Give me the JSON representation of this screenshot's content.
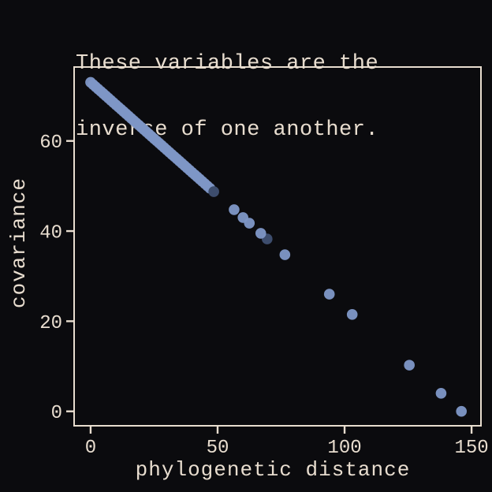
{
  "page": {
    "background_color": "#0b0b0e",
    "text_color": "#e8ddcf"
  },
  "title": {
    "line1": "These variables are the",
    "line2": "inverse of one another."
  },
  "chart_data": {
    "type": "scatter",
    "title": "These variables are the inverse of one another.",
    "xlabel": "phylogenetic distance",
    "ylabel": "covariance",
    "xlim": [
      -6.5,
      153.7
    ],
    "ylim": [
      -3.2,
      76.4
    ],
    "x_ticks": [
      0,
      50,
      100,
      150
    ],
    "y_ticks": [
      0,
      20,
      40,
      60
    ],
    "grid": false,
    "legend": "none",
    "marker_color": "#7e96c6",
    "dark_marker_color": "#3d4d6d",
    "marker_radius_px": 6.8,
    "relationship": "covariance ≈ 73 - 0.5 × phylogenetic distance",
    "points": [
      [
        0,
        73
      ],
      [
        1,
        72.5
      ],
      [
        2,
        72
      ],
      [
        3,
        71.5
      ],
      [
        4,
        71
      ],
      [
        5,
        70.5
      ],
      [
        6,
        70
      ],
      [
        7,
        69.5
      ],
      [
        8,
        69
      ],
      [
        9,
        68.5
      ],
      [
        10,
        68
      ],
      [
        11,
        67.5
      ],
      [
        12,
        67
      ],
      [
        13,
        66.5
      ],
      [
        14,
        66
      ],
      [
        15,
        65.5
      ],
      [
        16,
        65
      ],
      [
        17,
        64.5
      ],
      [
        18,
        64
      ],
      [
        19,
        63.5
      ],
      [
        20,
        63
      ],
      [
        21,
        62.5
      ],
      [
        22,
        62
      ],
      [
        23,
        61.5
      ],
      [
        24,
        61
      ],
      [
        25,
        60.5
      ],
      [
        26,
        60
      ],
      [
        27,
        59.5
      ],
      [
        28,
        59
      ],
      [
        29,
        58.5
      ],
      [
        30,
        58
      ],
      [
        31,
        57.5
      ],
      [
        32,
        57
      ],
      [
        33,
        56.5
      ],
      [
        34,
        56
      ],
      [
        35,
        55.5
      ],
      [
        36,
        55
      ],
      [
        37,
        54.5
      ],
      [
        38,
        54
      ],
      [
        39,
        53.5
      ],
      [
        40,
        53
      ],
      [
        41,
        52.5
      ],
      [
        42,
        52
      ],
      [
        43,
        51.5
      ],
      [
        44,
        51
      ],
      [
        45,
        50.5
      ],
      [
        46,
        50
      ],
      [
        47,
        49.5
      ],
      [
        56.5,
        44.75
      ],
      [
        60,
        43
      ],
      [
        62.5,
        41.75
      ],
      [
        67,
        39.5
      ],
      [
        76.5,
        34.75
      ],
      [
        94,
        26
      ],
      [
        103,
        21.5
      ],
      [
        125.5,
        10.25
      ],
      [
        138,
        4
      ],
      [
        146,
        0
      ]
    ],
    "dark_points": [
      [
        48.5,
        48.75
      ],
      [
        69.5,
        38.25
      ]
    ]
  }
}
